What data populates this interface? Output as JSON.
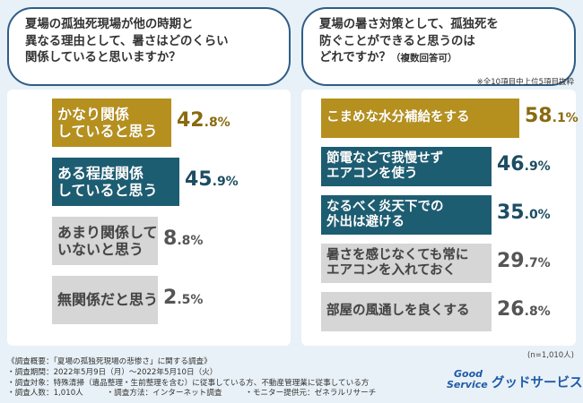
{
  "left_question": {
    "lines": [
      "夏場の孤独死現場が他の時期と",
      "異なる理由として、暑さはどのくらい",
      "関係していると思いますか？"
    ]
  },
  "right_question": {
    "lines": [
      "夏場の暑さ対策として、孤独死を",
      "防ぐことができると思うのは",
      "どれですか？",
      "（複数回答可）"
    ]
  },
  "right_note": "※全10項目中上位5項目抜粋",
  "n_note": "(n=1,010人)",
  "chart_data": [
    {
      "type": "bar",
      "orientation": "horizontal",
      "xlim": [
        0,
        100
      ],
      "categories": [
        "かなり関係していると思う",
        "ある程度関係していると思う",
        "あまり関係していないと思う",
        "無関係だと思う"
      ],
      "label_lines": [
        [
          "かなり関係",
          "していると思う"
        ],
        [
          "ある程度関係",
          "していると思う"
        ],
        [
          "あまり関係して",
          "いないと思う"
        ],
        [
          "無関係だと思う"
        ]
      ],
      "values": [
        42.8,
        45.9,
        8.8,
        2.5
      ],
      "value_int": [
        "42",
        "45",
        "8",
        "2"
      ],
      "value_dec": [
        ".8%",
        ".9%",
        ".8%",
        ".5%"
      ],
      "colors": [
        "#b5901e",
        "#1d5d72",
        "#d6d6d6",
        "#d6d6d6"
      ],
      "value_colors": [
        "#8a6a10",
        "#1d4d62",
        "#555555",
        "#555555"
      ],
      "label_dark": [
        false,
        false,
        true,
        true
      ]
    },
    {
      "type": "bar",
      "orientation": "horizontal",
      "xlim": [
        0,
        100
      ],
      "categories": [
        "こまめな水分補給をする",
        "節電などで我慢せずエアコンを使う",
        "なるべく炎天下での外出は避ける",
        "暑さを感じなくても常にエアコンを入れておく",
        "部屋の風通しを良くする"
      ],
      "label_lines": [
        [
          "こまめな水分補給をする"
        ],
        [
          "節電などで我慢せず",
          "エアコンを使う"
        ],
        [
          "なるべく炎天下での",
          "外出は避ける"
        ],
        [
          "暑さを感じなくても常に",
          "エアコンを入れておく"
        ],
        [
          "部屋の風通しを良くする"
        ]
      ],
      "values": [
        58.1,
        46.9,
        35.0,
        29.7,
        26.8
      ],
      "value_int": [
        "58",
        "46",
        "35",
        "29",
        "26"
      ],
      "value_dec": [
        ".1%",
        ".9%",
        ".0%",
        ".7%",
        ".8%"
      ],
      "colors": [
        "#b5901e",
        "#1d5d72",
        "#1d5d72",
        "#d6d6d6",
        "#d6d6d6"
      ],
      "value_colors": [
        "#8a6a10",
        "#1d4d62",
        "#1d4d62",
        "#555555",
        "#555555"
      ],
      "label_dark": [
        false,
        false,
        false,
        true,
        true
      ]
    }
  ],
  "survey": {
    "lines": [
      "《調査概要：「夏場の孤独死現場の悲惨さ」に関する調査》",
      "・調査期間：2022年5月9日（月）～2022年5月10日（火）",
      "・調査対象：特殊清掃（遺品整理・生前整理を含む）に従事している方、不動産管理業に従事している方",
      "・調査人数：1,010人　　　・調査方法：インターネット調査　　　・モニター提供元：ゼネラルリサーチ"
    ]
  },
  "logo": {
    "mark_top": "Good",
    "mark_bottom": "Service",
    "name": "グッドサービス",
    "color": "#1f5aa8"
  }
}
